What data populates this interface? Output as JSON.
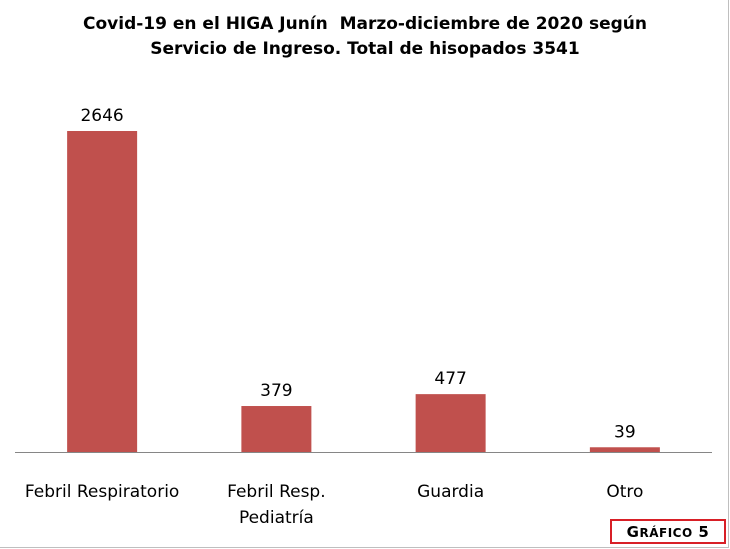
{
  "chart_data": {
    "type": "bar",
    "title_lines": [
      "Covid-19 en el HIGA Junín  Marzo-diciembre de 2020 según",
      "Servicio de Ingreso. Total de hisopados 3541"
    ],
    "categories": [
      [
        "Febril Respiratorio"
      ],
      [
        "Febril Resp.",
        "Pediatría"
      ],
      [
        "Guardia"
      ],
      [
        "Otro"
      ]
    ],
    "values": [
      2646,
      379,
      477,
      39
    ],
    "data_labels": [
      "2646",
      "379",
      "477",
      "39"
    ],
    "ylim": [
      0,
      2646
    ],
    "grid": false,
    "bar_color": "#c0504d"
  },
  "badge": {
    "label": "Gráfico 5",
    "border_color": "#d81f26"
  }
}
